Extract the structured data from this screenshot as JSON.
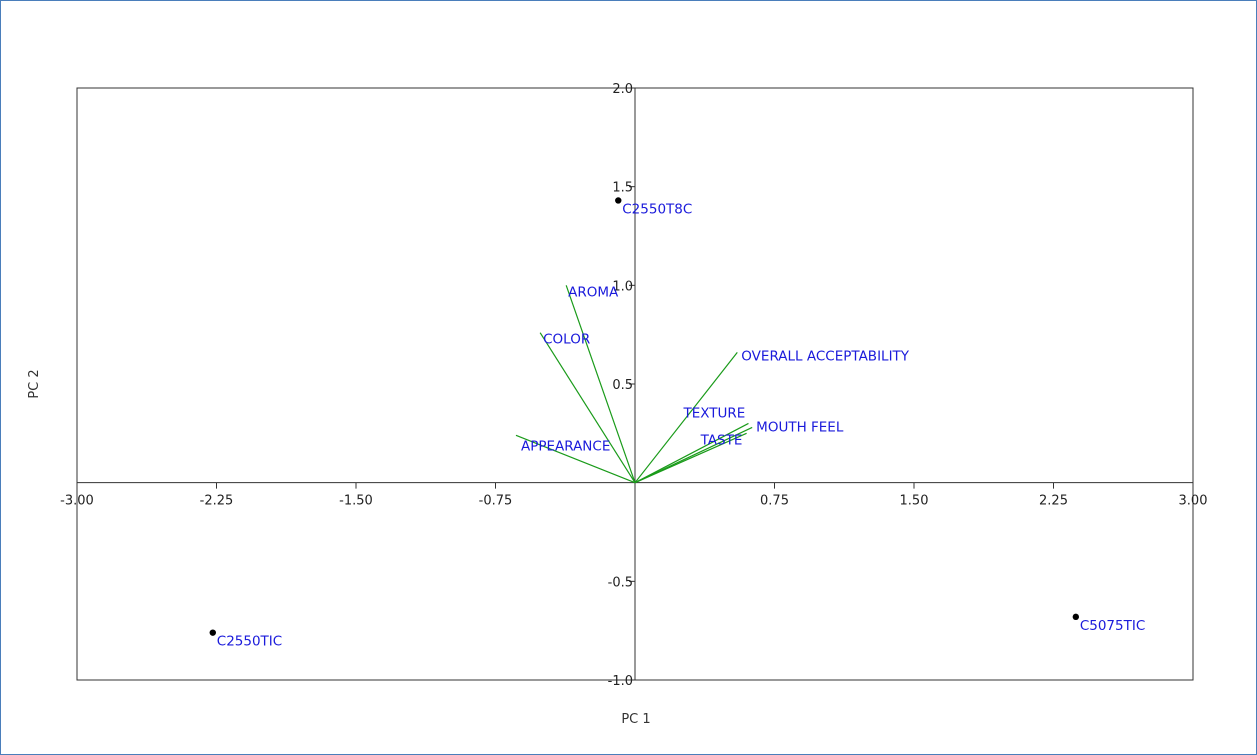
{
  "chart_data": {
    "type": "scatter",
    "title": "",
    "xlabel": "PC 1",
    "ylabel": "PC 2",
    "xlim": [
      -3.0,
      3.0
    ],
    "ylim": [
      -1.0,
      2.0
    ],
    "x_ticks": [
      -3.0,
      -2.25,
      -1.5,
      -0.75,
      0.75,
      1.5,
      2.25,
      3.0
    ],
    "x_tick_labels": [
      "-3.00",
      "-2.25",
      "-1.50",
      "-0.75",
      "0.75",
      "1.50",
      "2.25",
      "3.00"
    ],
    "y_ticks": [
      -1.0,
      -0.5,
      0.5,
      1.0,
      1.5,
      2.0
    ],
    "y_tick_labels": [
      "-1.0",
      "-0.5",
      "0.5",
      "1.0",
      "1.5",
      "2.0"
    ],
    "grid": false,
    "points": [
      {
        "label": "C2550T8C",
        "x": -0.09,
        "y": 1.43
      },
      {
        "label": "C2550TIC",
        "x": -2.27,
        "y": -0.76
      },
      {
        "label": "C5075TIC",
        "x": 2.37,
        "y": -0.68
      }
    ],
    "vectors": [
      {
        "label": "AROMA",
        "x": -0.37,
        "y": 1.0
      },
      {
        "label": "COLOR",
        "x": -0.51,
        "y": 0.76
      },
      {
        "label": "OVERALL ACCEPTABILITY",
        "x": 0.55,
        "y": 0.66
      },
      {
        "label": "APPEARANCE",
        "x": -0.64,
        "y": 0.24
      },
      {
        "label": "TEXTURE",
        "x": 0.61,
        "y": 0.3
      },
      {
        "label": "MOUTH FEEL",
        "x": 0.63,
        "y": 0.28
      },
      {
        "label": "TASTE",
        "x": 0.6,
        "y": 0.25
      }
    ],
    "colors": {
      "vector": "#1a9b1a",
      "label": "#1a1adb",
      "point": "#000000",
      "axis": "#333333"
    }
  }
}
